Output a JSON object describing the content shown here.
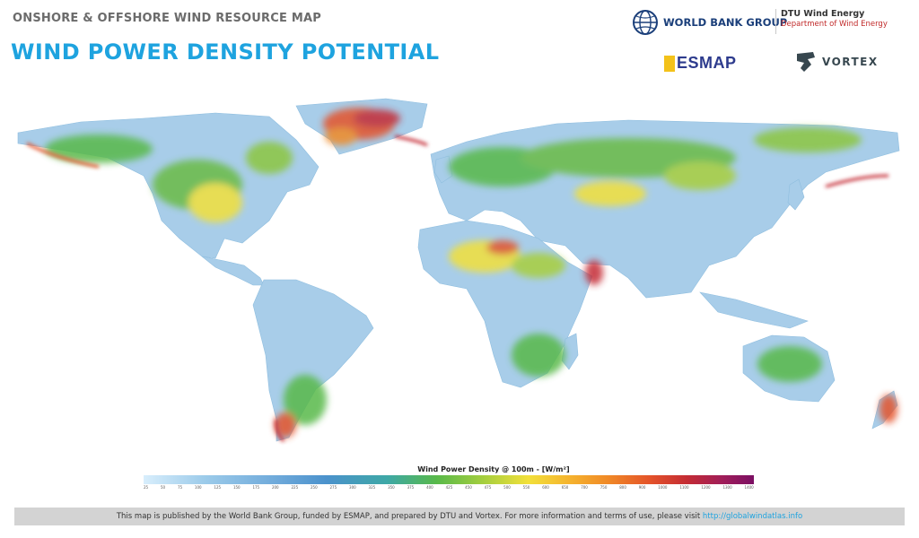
{
  "header": {
    "subtitle": "ONSHORE & OFFSHORE WIND RESOURCE MAP",
    "title": "WIND POWER DENSITY POTENTIAL"
  },
  "logos": {
    "world_bank": "WORLD BANK GROUP",
    "dtu_line1": "DTU Wind Energy",
    "dtu_line2": "Department of Wind Energy",
    "esmap": "ESMAP",
    "vortex": "VORTEX"
  },
  "legend": {
    "title": "Wind Power Density @ 100m - [W/m²]",
    "ticks": [
      "25",
      "50",
      "75",
      "100",
      "125",
      "150",
      "175",
      "200",
      "225",
      "250",
      "275",
      "300",
      "325",
      "350",
      "375",
      "400",
      "425",
      "450",
      "475",
      "500",
      "550",
      "600",
      "650",
      "700",
      "750",
      "800",
      "900",
      "1000",
      "1100",
      "1200",
      "1300",
      "1400"
    ]
  },
  "footer": {
    "text": "This  map is published by the World Bank Group, funded by ESMAP, and prepared by DTU and Vortex. For more information and terms of use, please visit",
    "link": "http://globalwindatlas.info"
  },
  "colors": {
    "title": "#1ea3df",
    "low": "#a8cde9",
    "mid": "#58b94a",
    "high": "#e4532a",
    "very_high": "#7b0f63"
  }
}
